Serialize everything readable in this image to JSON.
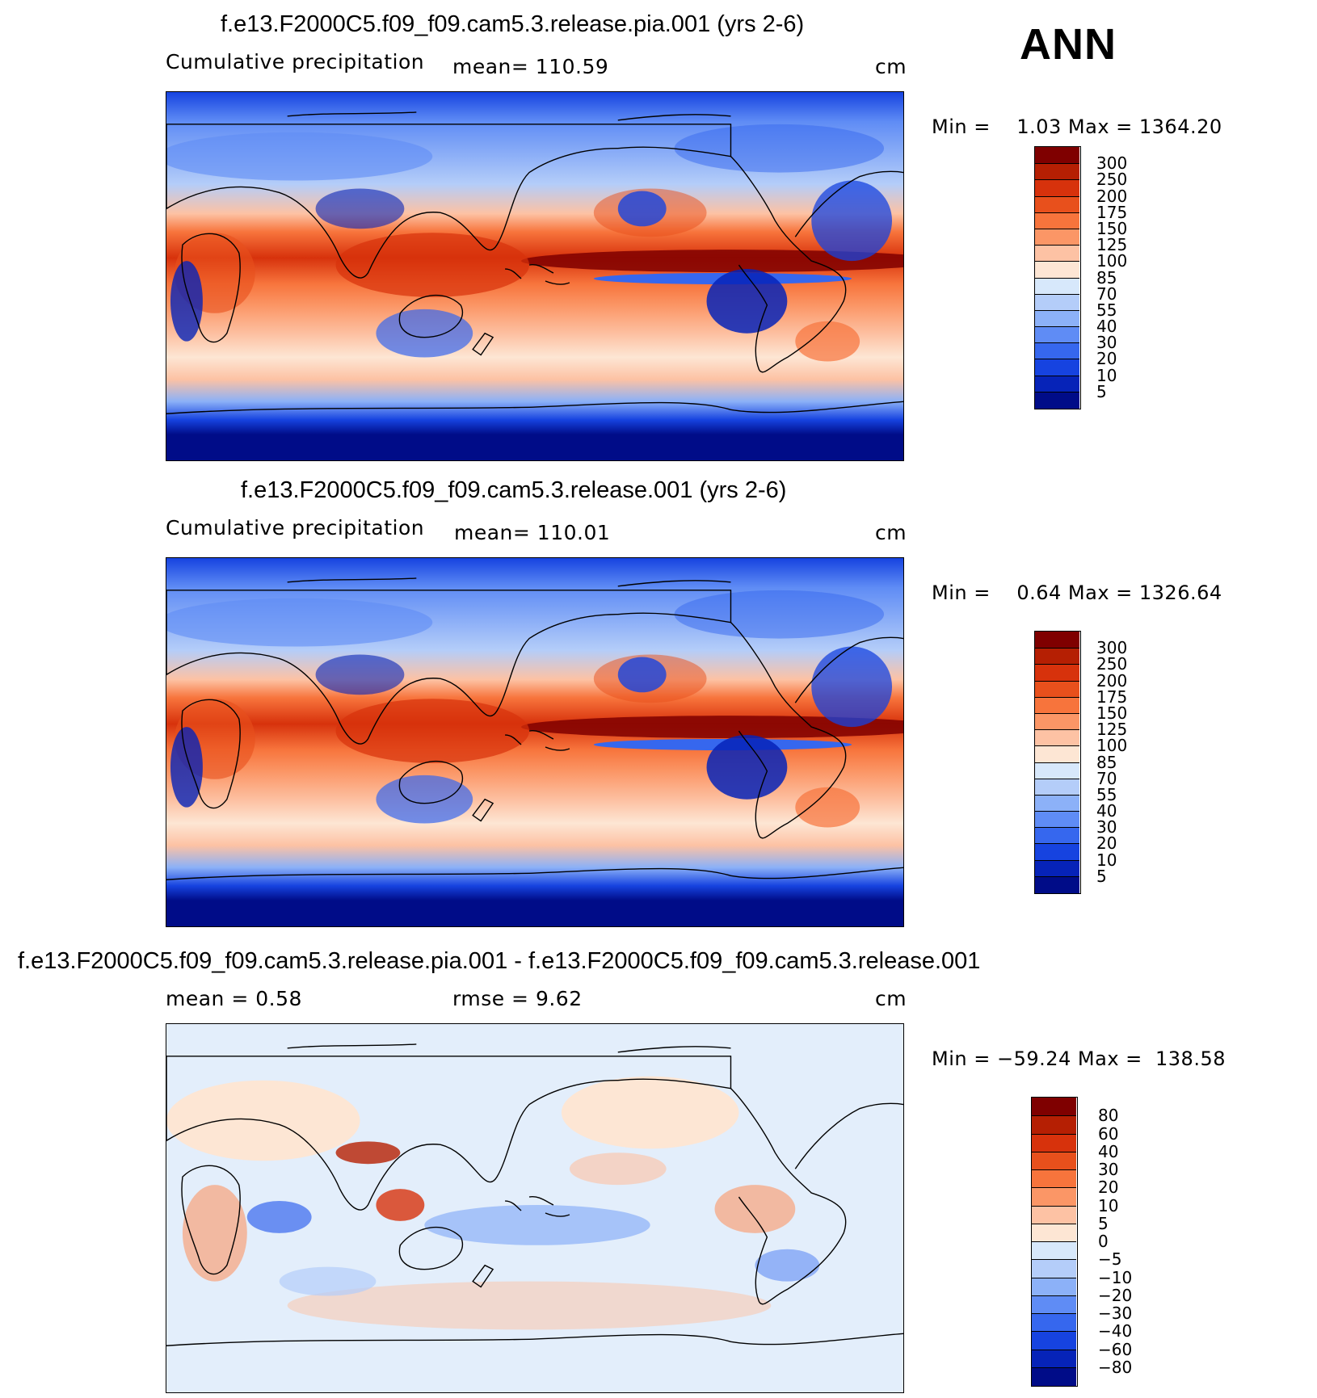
{
  "season_label": "ANN",
  "panels": [
    {
      "title": "f.e13.F2000C5.f09_f09.cam5.3.release.pia.001 (yrs 2-6)",
      "left_label": "Cumulative precipitation",
      "mid_label": "mean=  110.59",
      "units": "cm",
      "minmax": "Min =    1.03 Max = 1364.20"
    },
    {
      "title": "f.e13.F2000C5.f09_f09.cam5.3.release.001 (yrs 2-6)",
      "left_label": "Cumulative precipitation",
      "mid_label": "mean=  110.01",
      "units": "cm",
      "minmax": "Min =    0.64 Max = 1326.64"
    },
    {
      "title": "f.e13.F2000C5.f09_f09.cam5.3.release.pia.001 - f.e13.F2000C5.f09_f09.cam5.3.release.001",
      "left_label": "mean =    0.58",
      "mid_label": "rmse =     9.62",
      "units": "cm",
      "minmax": "Min = −59.24 Max =  138.58"
    }
  ],
  "colorbars": {
    "precip": {
      "labels": [
        "300",
        "250",
        "200",
        "175",
        "150",
        "125",
        "100",
        "85",
        "70",
        "55",
        "40",
        "30",
        "20",
        "10",
        "5"
      ],
      "colors": [
        "#7f0000",
        "#b51f03",
        "#d7320c",
        "#e8501c",
        "#f7743c",
        "#fb9666",
        "#fdc2a4",
        "#fde6d4",
        "#d7e8fb",
        "#b4cdf9",
        "#8cb1f8",
        "#5f8cf5",
        "#3667ee",
        "#1643e0",
        "#0623b8",
        "#000c88"
      ]
    },
    "diff": {
      "labels": [
        "80",
        "60",
        "40",
        "30",
        "20",
        "10",
        "5",
        "0",
        "−5",
        "−10",
        "−20",
        "−30",
        "−40",
        "−60",
        "−80"
      ],
      "colors": [
        "#7f0000",
        "#b51f03",
        "#d7320c",
        "#e8501c",
        "#f7743c",
        "#fb9666",
        "#fdc2a4",
        "#fde6d4",
        "#d7e8fb",
        "#b4cdf9",
        "#8cb1f8",
        "#5f8cf5",
        "#3667ee",
        "#1643e0",
        "#0623b8",
        "#000c88"
      ]
    }
  }
}
